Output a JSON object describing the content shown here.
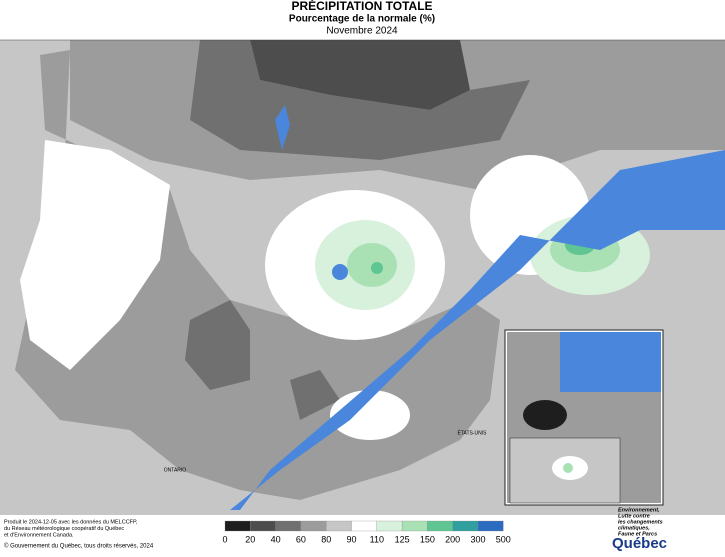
{
  "header": {
    "title": "PRÉCIPITATION TOTALE",
    "subtitle": "Pourcentage de la normale (%)",
    "period": "Novembre 2024"
  },
  "legend": {
    "colors": [
      "#1e1e1e",
      "#4d4d4d",
      "#707070",
      "#9c9c9c",
      "#c6c6c6",
      "#ffffff",
      "#d8f1dc",
      "#a9e1b4",
      "#5fc593",
      "#2f9fa0",
      "#2c6cc0",
      "#1414b4"
    ],
    "labels": [
      0,
      20,
      40,
      60,
      80,
      90,
      110,
      125,
      150,
      200,
      300,
      500
    ]
  },
  "map_labels": {
    "ontario": "ONTARIO",
    "usa": "ÉTATS-UNIS"
  },
  "footer": {
    "credit": [
      "Produit le 2024-12-05 avec les données du MELCCFP,",
      "du Réseau météorologique coopératif du Québec",
      "et d'Environnement Canada."
    ],
    "copyright": "© Gouvernement du Québec, tous droits réservés, 2024"
  },
  "logo": {
    "ministry": [
      "Environnement,",
      "Lutte contre",
      "les changements",
      "climatiques,",
      "Faune et Parcs"
    ],
    "name": "Québec"
  }
}
